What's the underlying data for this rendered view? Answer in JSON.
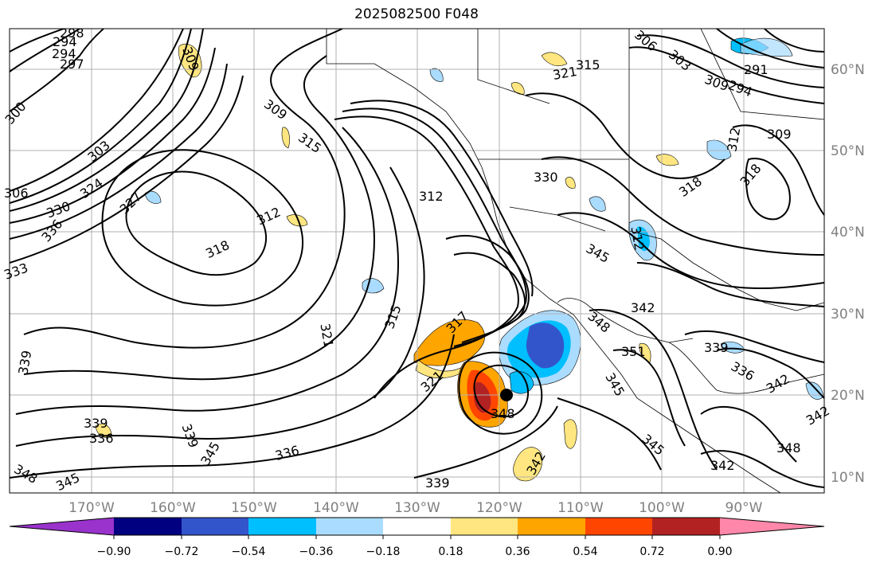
{
  "title": "2025082500 F048",
  "lat_labels": [
    "60°N",
    "50°N",
    "40°N",
    "30°N",
    "20°N",
    "10°N"
  ],
  "lon_labels": [
    "170°W",
    "160°W",
    "150°W",
    "140°W",
    "130°W",
    "120°W",
    "110°W",
    "100°W",
    "90°W"
  ],
  "colorbar": {
    "ticks": [
      "−0.90",
      "−0.72",
      "−0.54",
      "−0.36",
      "−0.18",
      "0.18",
      "0.36",
      "0.54",
      "0.72",
      "0.90"
    ],
    "colors": [
      "#9933cc",
      "#000080",
      "#3355cc",
      "#00bfff",
      "#aadcff",
      "#ffffff",
      "#ffe680",
      "#ffa500",
      "#ff4500",
      "#b22222",
      "#ff88aa"
    ]
  },
  "contour_labels": {
    "c291a": "291",
    "c294a": "294",
    "c294b": "294",
    "c297": "297",
    "c298": "298",
    "c300": "300",
    "c303a": "303",
    "c303b": "303",
    "c306a": "306",
    "c306b": "306",
    "c309a": "309",
    "c309b": "309",
    "c309c": "309",
    "c312a": "312",
    "c312b": "312",
    "c312c": "312",
    "c315a": "315",
    "c315b": "315",
    "c315c": "315",
    "c318a": "318",
    "c318b": "318",
    "c321a": "321",
    "c321b": "321",
    "c324": "324",
    "c327": "327",
    "c330a": "330",
    "c330b": "330",
    "c333": "333",
    "c336a": "336",
    "c336b": "336",
    "c336c": "336",
    "c339a": "339",
    "c339b": "339",
    "c339c": "339",
    "c339d": "339",
    "c342a": "342",
    "c342b": "342",
    "c342c": "342",
    "c345a": "345",
    "c345b": "345",
    "c345c": "345",
    "c348a": "348",
    "c348b": "348",
    "c348c": "348",
    "c348d": "348",
    "c351": "351",
    "c312d": "312",
    "c317": "317",
    "c318c": "318",
    "c339e": "339",
    "c342d": "342",
    "c345d": "345"
  }
}
